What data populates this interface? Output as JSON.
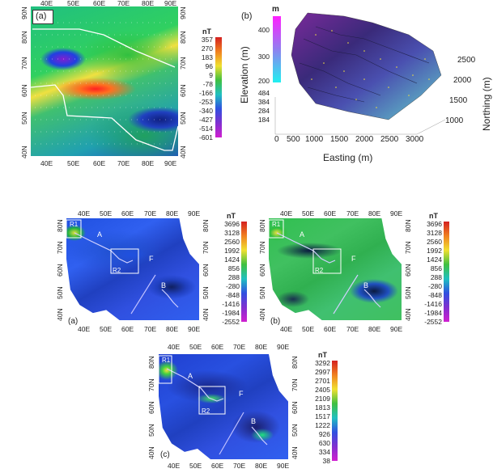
{
  "panel_top_a": {
    "label": "(a)",
    "x_ticks": [
      "40E",
      "50E",
      "60E",
      "70E",
      "80E",
      "90E"
    ],
    "y_ticks_left": [
      "40N",
      "50N",
      "60N",
      "70N",
      "80N",
      "90N"
    ],
    "y_ticks_right": [
      "40N",
      "50N",
      "60N",
      "70N",
      "80N",
      "90N"
    ],
    "colorbar_unit": "nT",
    "colorbar_labels": [
      "357",
      "270",
      "183",
      "96",
      "9",
      "-78",
      "-166",
      "-253",
      "-340",
      "-427",
      "-514",
      "-601"
    ]
  },
  "panel_top_b": {
    "label": "(b)",
    "colorbar_unit": "m",
    "colorbar_labels": [
      "400",
      "300",
      "200"
    ],
    "elevation_ticks": [
      "484",
      "384",
      "284",
      "184"
    ],
    "z_title": "Elevation (m)",
    "x_title": "Easting (m)",
    "y_title": "Northing (m)",
    "x_ticks": [
      "0",
      "500",
      "1000",
      "1500",
      "2000",
      "2500",
      "3000"
    ],
    "y_ticks": [
      "1000",
      "1500",
      "2000",
      "2500"
    ]
  },
  "maps": [
    {
      "label": "(a)",
      "x_ticks": [
        "40E",
        "50E",
        "60E",
        "70E",
        "80E",
        "90E"
      ],
      "y_ticks": [
        "40N",
        "50N",
        "60N",
        "70N",
        "80N"
      ],
      "colorbar_unit": "nT",
      "colorbar_labels": [
        "3696",
        "3128",
        "2560",
        "1992",
        "1424",
        "856",
        "288",
        "-280",
        "-848",
        "-1416",
        "-1984",
        "-2552"
      ],
      "annotations": {
        "r1": "R1",
        "r2": "R2",
        "a": "A",
        "b": "B",
        "f": "F"
      }
    },
    {
      "label": "(b)",
      "x_ticks": [
        "40E",
        "50E",
        "60E",
        "70E",
        "80E",
        "90E"
      ],
      "y_ticks": [
        "40N",
        "50N",
        "60N",
        "70N",
        "80N"
      ],
      "colorbar_unit": "nT",
      "colorbar_labels": [
        "3696",
        "3128",
        "2560",
        "1992",
        "1424",
        "856",
        "288",
        "-280",
        "-848",
        "-1416",
        "-1984",
        "-2552"
      ],
      "annotations": {
        "r1": "R1",
        "r2": "R2",
        "a": "A",
        "b": "B",
        "f": "F"
      }
    },
    {
      "label": "(c)",
      "x_ticks": [
        "40E",
        "50E",
        "60E",
        "70E",
        "80E",
        "90E"
      ],
      "y_ticks": [
        "40N",
        "50N",
        "60N",
        "70N",
        "80N"
      ],
      "colorbar_unit": "nT",
      "colorbar_labels": [
        "3292",
        "2997",
        "2701",
        "2405",
        "2109",
        "1813",
        "1517",
        "1222",
        "926",
        "630",
        "334",
        "38"
      ],
      "annotations": {
        "r1": "R1",
        "r2": "R2",
        "a": "A",
        "b": "B",
        "f": "F"
      }
    }
  ]
}
